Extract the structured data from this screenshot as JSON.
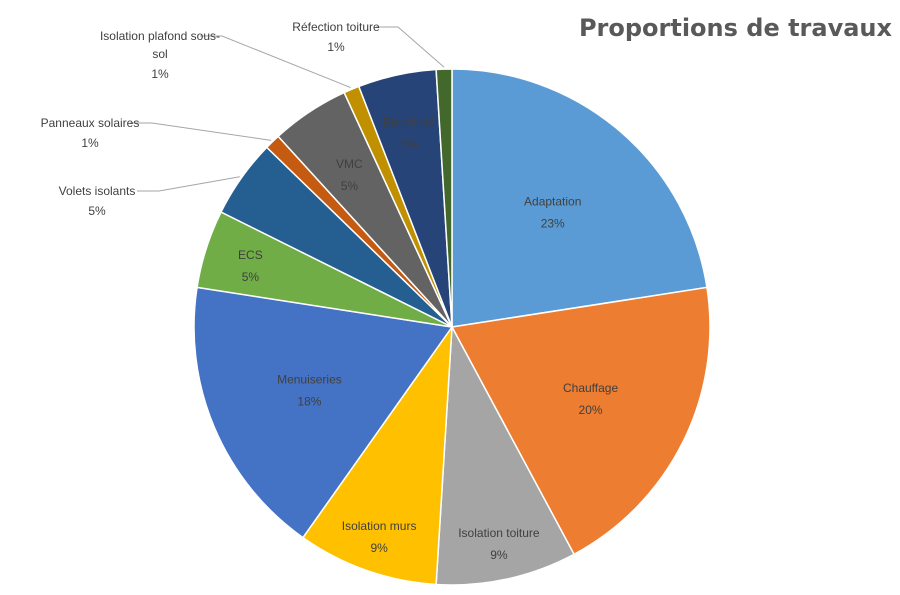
{
  "chart_data": {
    "type": "pie",
    "title": "Proportions de travaux",
    "slices": [
      {
        "name": "Adaptation",
        "value": 23,
        "label_pct": "23%",
        "color": "#5B9BD5"
      },
      {
        "name": "Chauffage",
        "value": 20,
        "label_pct": "20%",
        "color": "#ED7D31"
      },
      {
        "name": "Isolation toiture",
        "value": 9,
        "label_pct": "9%",
        "color": "#A5A5A5"
      },
      {
        "name": "Isolation murs",
        "value": 9,
        "label_pct": "9%",
        "color": "#FFC000"
      },
      {
        "name": "Menuiseries",
        "value": 18,
        "label_pct": "18%",
        "color": "#4472C4"
      },
      {
        "name": "ECS",
        "value": 5,
        "label_pct": "5%",
        "color": "#70AD47"
      },
      {
        "name": "Volets isolants",
        "value": 5,
        "label_pct": "5%",
        "color": "#255E91"
      },
      {
        "name": "Panneaux solaires",
        "value": 1,
        "label_pct": "1%",
        "color": "#C55A11"
      },
      {
        "name": "VMC",
        "value": 5,
        "label_pct": "5%",
        "color": "#636363"
      },
      {
        "name": "Isolation plafond sous-sol",
        "value": 1,
        "label_pct": "1%",
        "color": "#C09000"
      },
      {
        "name": "Electricité",
        "value": 5,
        "label_pct": "5%",
        "color": "#264478"
      },
      {
        "name": "Réfection toiture",
        "value": 1,
        "label_pct": "1%",
        "color": "#43682B"
      }
    ]
  }
}
